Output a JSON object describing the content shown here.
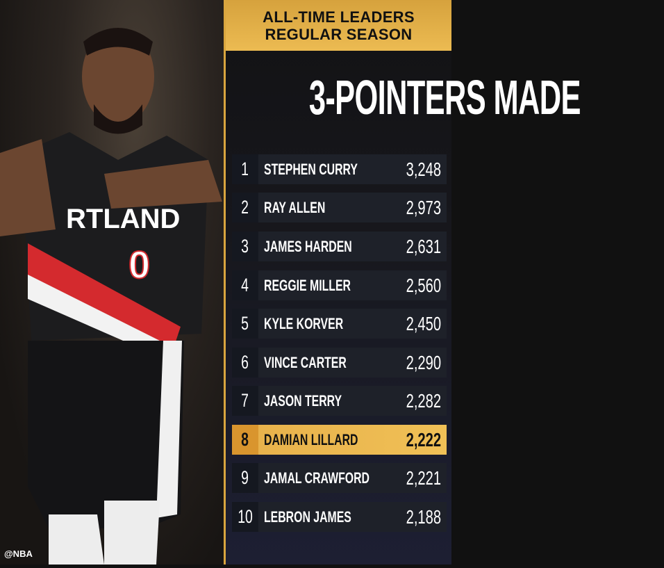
{
  "header": {
    "line1": "ALL-TIME LEADERS",
    "line2": "REGULAR SEASON"
  },
  "title": "3-POINTERS MADE",
  "leaders": [
    {
      "rank": "1",
      "name": "STEPHEN CURRY",
      "value": "3,248"
    },
    {
      "rank": "2",
      "name": "RAY ALLEN",
      "value": "2,973"
    },
    {
      "rank": "3",
      "name": "JAMES HARDEN",
      "value": "2,631"
    },
    {
      "rank": "4",
      "name": "REGGIE MILLER",
      "value": "2,560"
    },
    {
      "rank": "5",
      "name": "KYLE KORVER",
      "value": "2,450"
    },
    {
      "rank": "6",
      "name": "VINCE CARTER",
      "value": "2,290"
    },
    {
      "rank": "7",
      "name": "JASON TERRY",
      "value": "2,282"
    },
    {
      "rank": "8",
      "name": "DAMIAN LILLARD",
      "value": "2,222",
      "highlighted": true
    },
    {
      "rank": "9",
      "name": "JAMAL CRAWFORD",
      "value": "2,221"
    },
    {
      "rank": "10",
      "name": "LEBRON JAMES",
      "value": "2,188"
    }
  ],
  "photo": {
    "jersey_text": "RTLAND",
    "jersey_number": "0"
  },
  "watermark": "@NBA",
  "colors": {
    "gold": "#e7b04a",
    "panel": "#17171c",
    "row": "#1e2129"
  }
}
